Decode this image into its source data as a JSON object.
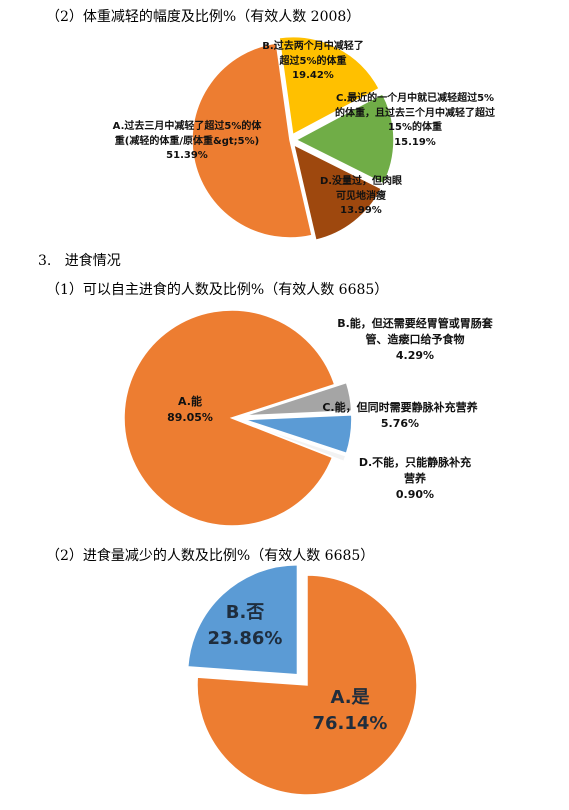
{
  "headings": [
    "（2）体重减轻的幅度及比例%（有效人数 2008）",
    "3.   进食情况",
    "（1）可以自主进食的人数及比例%（有效人数 6685）",
    "（2）进食量减少的人数及比例%（有效人数 6685）"
  ],
  "chart_data": [
    {
      "type": "pie",
      "categories": [
        "B.过去两个月中减轻了超过5%的体重",
        "C.最近的一个月中就已减轻超过5%的体重，且过去三个月中减轻了超过15%的体重",
        "D.没量过，但肉眼可见地消瘦",
        "A.过去三月中减轻了超过5%的体重(减轻的体重/原体重&gt;5%)"
      ],
      "values": [
        19.42,
        15.19,
        13.99,
        51.39
      ],
      "value_labels": [
        "19.42%",
        "15.19%",
        "13.99%",
        "51.39%"
      ],
      "colors": [
        "#FFC000",
        "#70AD47",
        "#9E480E",
        "#ED7D31"
      ]
    },
    {
      "type": "pie",
      "categories": [
        "B.能，但还需要经胃管或胃肠套管、造瘘口给予食物",
        "C.能，但同时需要静脉补充营养",
        "D.不能，只能静脉补充营养",
        "A.能"
      ],
      "values": [
        4.29,
        5.76,
        0.9,
        89.05
      ],
      "value_labels": [
        "4.29%",
        "5.76%",
        "0.90%",
        "89.05%"
      ],
      "colors": [
        "#A5A5A5",
        "#5B9BD5",
        "#F2F2F2",
        "#ED7D31"
      ]
    },
    {
      "type": "pie",
      "categories": [
        "A.是",
        "B.否"
      ],
      "values": [
        76.14,
        23.86
      ],
      "value_labels": [
        "76.14%",
        "23.86%"
      ],
      "colors": [
        "#ED7D31",
        "#5B9BD5"
      ]
    }
  ]
}
